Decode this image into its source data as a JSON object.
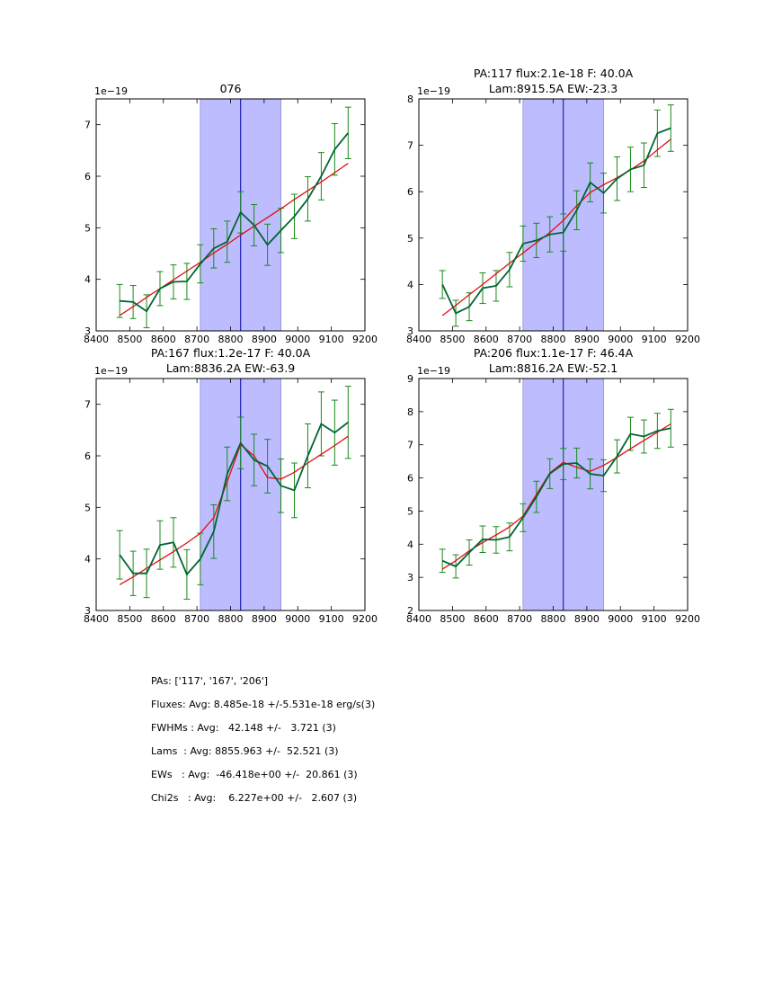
{
  "colors": {
    "data_line": "#006633",
    "model_line": "#e01010",
    "errorbar": "#1a8a1a",
    "band": "#bcbcff",
    "center_line": "#0000aa"
  },
  "chart_data": [
    {
      "type": "line",
      "title": "076",
      "multiplier_label": "1e−19",
      "xlim": [
        8400,
        9200
      ],
      "ylim": [
        3,
        7.5
      ],
      "xticks": [
        8400,
        8500,
        8600,
        8700,
        8800,
        8900,
        9000,
        9100,
        9200
      ],
      "yticks": [
        3,
        4,
        5,
        6,
        7
      ],
      "band": [
        8710,
        8950
      ],
      "center_line": 8830,
      "series": [
        {
          "role": "data",
          "x": [
            8470,
            8510,
            8550,
            8590,
            8630,
            8670,
            8710,
            8750,
            8790,
            8830,
            8870,
            8910,
            8950,
            8990,
            9030,
            9070,
            9110,
            9150
          ],
          "y": [
            3.58,
            3.56,
            3.38,
            3.82,
            3.95,
            3.96,
            4.3,
            4.6,
            4.73,
            5.3,
            5.05,
            4.67,
            4.95,
            5.22,
            5.56,
            6.0,
            6.52,
            6.84
          ],
          "err": [
            0.32,
            0.32,
            0.32,
            0.33,
            0.33,
            0.35,
            0.37,
            0.38,
            0.4,
            0.4,
            0.4,
            0.4,
            0.43,
            0.43,
            0.43,
            0.46,
            0.5,
            0.5
          ]
        },
        {
          "role": "model",
          "x": [
            8470,
            8510,
            8550,
            8590,
            8630,
            8670,
            8710,
            8750,
            8790,
            8830,
            8870,
            8910,
            8950,
            8990,
            9030,
            9070,
            9110,
            9150
          ],
          "y": [
            3.3,
            3.47,
            3.65,
            3.82,
            3.99,
            4.16,
            4.33,
            4.51,
            4.68,
            4.86,
            5.03,
            5.2,
            5.37,
            5.55,
            5.72,
            5.89,
            6.07,
            6.25
          ]
        }
      ]
    },
    {
      "type": "line",
      "title": "PA:117 flux:2.1e-18 F: 40.0A",
      "subtitle": "Lam:8915.5A EW:-23.3",
      "multiplier_label": "1e−19",
      "xlim": [
        8400,
        9200
      ],
      "ylim": [
        3,
        8
      ],
      "xticks": [
        8400,
        8500,
        8600,
        8700,
        8800,
        8900,
        9000,
        9100,
        9200
      ],
      "yticks": [
        3,
        4,
        5,
        6,
        7,
        8
      ],
      "band": [
        8710,
        8950
      ],
      "center_line": 8830,
      "series": [
        {
          "role": "data",
          "x": [
            8470,
            8510,
            8550,
            8590,
            8630,
            8670,
            8710,
            8750,
            8790,
            8830,
            8870,
            8910,
            8950,
            8990,
            9030,
            9070,
            9110,
            9150
          ],
          "y": [
            4.0,
            3.38,
            3.52,
            3.92,
            3.97,
            4.32,
            4.88,
            4.95,
            5.08,
            5.12,
            5.6,
            6.2,
            5.97,
            6.28,
            6.48,
            6.57,
            7.26,
            7.37
          ],
          "err": [
            0.3,
            0.28,
            0.3,
            0.33,
            0.33,
            0.37,
            0.38,
            0.37,
            0.38,
            0.4,
            0.42,
            0.42,
            0.43,
            0.47,
            0.48,
            0.48,
            0.5,
            0.5
          ]
        },
        {
          "role": "model",
          "x": [
            8470,
            8510,
            8550,
            8590,
            8630,
            8670,
            8710,
            8750,
            8790,
            8830,
            8870,
            8910,
            8950,
            8990,
            9030,
            9070,
            9110,
            9150
          ],
          "y": [
            3.33,
            3.55,
            3.78,
            4.0,
            4.23,
            4.46,
            4.68,
            4.9,
            5.12,
            5.38,
            5.7,
            5.98,
            6.15,
            6.3,
            6.47,
            6.66,
            6.9,
            7.13
          ]
        }
      ]
    },
    {
      "type": "line",
      "title": "PA:167 flux:1.2e-17 F: 40.0A",
      "subtitle": "Lam:8836.2A EW:-63.9",
      "multiplier_label": "1e−19",
      "xlim": [
        8400,
        9200
      ],
      "ylim": [
        3,
        7.5
      ],
      "xticks": [
        8400,
        8500,
        8600,
        8700,
        8800,
        8900,
        9000,
        9100,
        9200
      ],
      "yticks": [
        3,
        4,
        5,
        6,
        7
      ],
      "band": [
        8710,
        8950
      ],
      "center_line": 8830,
      "series": [
        {
          "role": "data",
          "x": [
            8470,
            8510,
            8550,
            8590,
            8630,
            8670,
            8710,
            8750,
            8790,
            8830,
            8870,
            8910,
            8950,
            8990,
            9030,
            9070,
            9110,
            9150
          ],
          "y": [
            4.08,
            3.72,
            3.72,
            4.27,
            4.32,
            3.7,
            4.0,
            4.53,
            5.65,
            6.25,
            5.92,
            5.8,
            5.42,
            5.33,
            6.0,
            6.62,
            6.45,
            6.65
          ],
          "err": [
            0.47,
            0.43,
            0.47,
            0.47,
            0.48,
            0.48,
            0.5,
            0.52,
            0.52,
            0.5,
            0.5,
            0.52,
            0.52,
            0.53,
            0.62,
            0.62,
            0.63,
            0.7
          ]
        },
        {
          "role": "model",
          "x": [
            8470,
            8510,
            8550,
            8590,
            8630,
            8670,
            8710,
            8750,
            8790,
            8830,
            8870,
            8910,
            8950,
            8990,
            9030,
            9070,
            9110,
            9150
          ],
          "y": [
            3.5,
            3.65,
            3.82,
            3.98,
            4.14,
            4.31,
            4.5,
            4.8,
            5.5,
            6.22,
            6.0,
            5.58,
            5.55,
            5.68,
            5.86,
            6.03,
            6.2,
            6.38
          ]
        }
      ]
    },
    {
      "type": "line",
      "title": "PA:206 flux:1.1e-17 F: 46.4A",
      "subtitle": "Lam:8816.2A EW:-52.1",
      "multiplier_label": "1e−19",
      "xlim": [
        8400,
        9200
      ],
      "ylim": [
        2,
        9
      ],
      "xticks": [
        8400,
        8500,
        8600,
        8700,
        8800,
        8900,
        9000,
        9100,
        9200
      ],
      "yticks": [
        2,
        3,
        4,
        5,
        6,
        7,
        8,
        9
      ],
      "band": [
        8710,
        8950
      ],
      "center_line": 8830,
      "series": [
        {
          "role": "data",
          "x": [
            8470,
            8510,
            8550,
            8590,
            8630,
            8670,
            8710,
            8750,
            8790,
            8830,
            8870,
            8910,
            8950,
            8990,
            9030,
            9070,
            9110,
            9150
          ],
          "y": [
            3.5,
            3.33,
            3.75,
            4.15,
            4.13,
            4.22,
            4.8,
            5.43,
            6.13,
            6.42,
            6.45,
            6.12,
            6.07,
            6.65,
            7.33,
            7.25,
            7.42,
            7.5
          ],
          "err": [
            0.35,
            0.35,
            0.38,
            0.4,
            0.4,
            0.42,
            0.42,
            0.47,
            0.45,
            0.47,
            0.45,
            0.45,
            0.48,
            0.5,
            0.5,
            0.5,
            0.53,
            0.57
          ]
        },
        {
          "role": "model",
          "x": [
            8470,
            8510,
            8550,
            8590,
            8630,
            8670,
            8710,
            8750,
            8790,
            8830,
            8870,
            8910,
            8950,
            8990,
            9030,
            9070,
            9110,
            9150
          ],
          "y": [
            3.25,
            3.5,
            3.8,
            4.05,
            4.28,
            4.52,
            4.85,
            5.5,
            6.15,
            6.47,
            6.32,
            6.2,
            6.38,
            6.62,
            6.88,
            7.13,
            7.38,
            7.63
          ]
        }
      ]
    }
  ],
  "summary": {
    "pas": "PAs: ['117', '167', '206']",
    "fluxes": "Fluxes: Avg: 8.485e-18 +/-5.531e-18 erg/s(3)",
    "fwhms": "FWHMs : Avg:   42.148 +/-   3.721 (3)",
    "lams": "Lams  : Avg: 8855.963 +/-  52.521 (3)",
    "ews": "EWs   : Avg:  -46.418e+00 +/-  20.861 (3)",
    "chi2s": "Chi2s   : Avg:    6.227e+00 +/-   2.607 (3)"
  }
}
